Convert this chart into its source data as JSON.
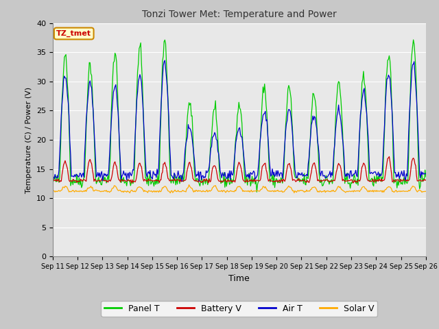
{
  "title": "Tonzi Tower Met: Temperature and Power",
  "xlabel": "Time",
  "ylabel": "Temperature (C) / Power (V)",
  "ylim": [
    0,
    40
  ],
  "yticks": [
    0,
    5,
    10,
    15,
    20,
    25,
    30,
    35,
    40
  ],
  "x_labels": [
    "Sep 11",
    "Sep 12",
    "Sep 13",
    "Sep 14",
    "Sep 15",
    "Sep 16",
    "Sep 17",
    "Sep 18",
    "Sep 19",
    "Sep 20",
    "Sep 21",
    "Sep 22",
    "Sep 23",
    "Sep 24",
    "Sep 25",
    "Sep 26"
  ],
  "colors": {
    "panel_t": "#00cc00",
    "battery_v": "#cc0000",
    "air_t": "#0000cc",
    "solar_v": "#ffaa00"
  },
  "annotation_label": "TZ_tmet",
  "annotation_color": "#cc0000",
  "annotation_bg": "#ffffcc",
  "annotation_edge": "#cc8800",
  "fig_bg": "#c8c8c8",
  "plot_bg": "#e8e8e8",
  "grid_color": "#ffffff",
  "n_points": 480
}
